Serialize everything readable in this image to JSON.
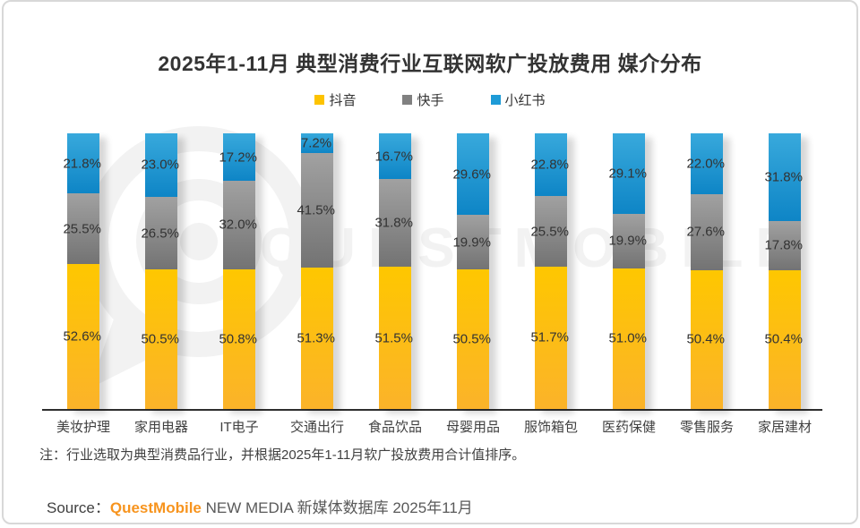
{
  "title": "2025年1-11月 典型消费行业互联网软广投放费用 媒介分布",
  "note": "注：行业选取为典型消费品行业，并根据2025年1-11月软广投放费用合计值排序。",
  "source": {
    "prefix": "Source：",
    "brand": "QuestMobile",
    "rest": " NEW MEDIA 新媒体数据库 2025年11月",
    "brand_color": "#F7941E"
  },
  "watermark": {
    "text": "QUESTMOBILE"
  },
  "colors": {
    "label_text": "#333333",
    "axis_line": "#2e2e2e"
  },
  "chart_data": {
    "type": "bar",
    "stacked": true,
    "percent_stacked": true,
    "unit": "%",
    "ylim": [
      0,
      100
    ],
    "grid": false,
    "legend_position": "top",
    "value_label_format": "{value}%",
    "categories": [
      "美妆护理",
      "家用电器",
      "IT电子",
      "交通出行",
      "食品饮品",
      "母婴用品",
      "服饰箱包",
      "医药保健",
      "零售服务",
      "家居建材"
    ],
    "series": [
      {
        "name": "抖音",
        "legend_color": "#FDC300",
        "gradient_top": "#FEC700",
        "gradient_bottom": "#FBB32A",
        "values": [
          52.6,
          50.5,
          50.8,
          51.3,
          51.5,
          50.5,
          51.7,
          51.0,
          50.4,
          50.4
        ]
      },
      {
        "name": "快手",
        "legend_color": "#808080",
        "gradient_top": "#A1A1A1",
        "gradient_bottom": "#737373",
        "values": [
          25.5,
          26.5,
          32.0,
          41.5,
          31.8,
          19.9,
          25.5,
          19.9,
          27.6,
          17.8
        ]
      },
      {
        "name": "小红书",
        "legend_color": "#1E9BD7",
        "gradient_top": "#38A9DC",
        "gradient_bottom": "#0E85C6",
        "values": [
          21.8,
          23.0,
          17.2,
          7.2,
          16.7,
          29.6,
          22.8,
          29.1,
          22.0,
          31.8
        ]
      }
    ]
  }
}
